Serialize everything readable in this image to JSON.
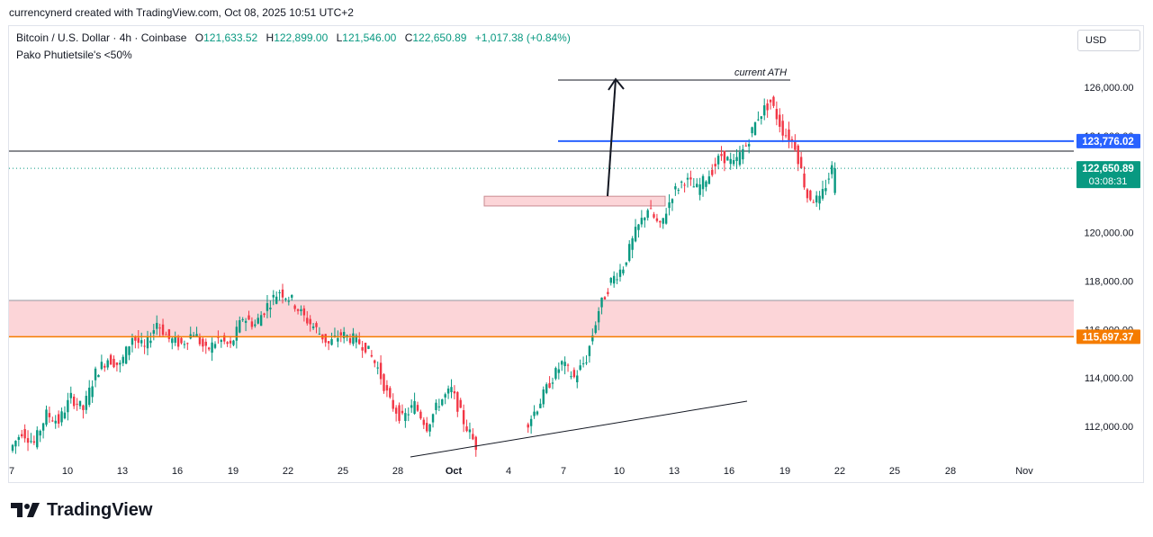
{
  "header": {
    "attribution": "currencynerd created with TradingView.com, Oct 08, 2025 10:51 UTC+2"
  },
  "legend": {
    "symbol": "Bitcoin / U.S. Dollar · 4h · Coinbase",
    "open_label": "O",
    "open": "121,633.52",
    "high_label": "H",
    "high": "122,899.00",
    "low_label": "L",
    "low": "121,546.00",
    "close_label": "C",
    "close": "122,650.89",
    "change": "+1,017.38 (+0.84%)",
    "indicator": "Pako Phutietsile's <50%"
  },
  "currency_button": "USD",
  "brand": {
    "name": "TradingView",
    "logo_icon": "tradingview-logo-icon"
  },
  "colors": {
    "up": "#089981",
    "down": "#f23645",
    "blue_level": "#2962ff",
    "orange_level": "#f57c00",
    "zone_fill": "#fcd5d8",
    "text": "#131722"
  },
  "chart_data": {
    "type": "candlestick",
    "symbol": "BTCUSD",
    "timeframe": "4h",
    "x_tick_labels": [
      "7",
      "10",
      "13",
      "16",
      "19",
      "22",
      "25",
      "28",
      "Oct",
      "4",
      "7",
      "10",
      "13",
      "16",
      "19",
      "22",
      "25",
      "28",
      "Nov"
    ],
    "y_tick_labels": [
      "126,000.00",
      "124,000.00",
      "120,000.00",
      "118,000.00",
      "116,000.00",
      "114,000.00",
      "112,000.00"
    ],
    "ylim": [
      110700,
      127300
    ],
    "x_range_days": [
      "2025-09-07",
      "2025-11-01"
    ],
    "price_levels": [
      {
        "label": "123,776.02",
        "value": 123776.02,
        "color": "#2962ff"
      },
      {
        "label": "122,650.89",
        "value": 122650.89,
        "color": "#089981",
        "countdown": "03:08:31"
      },
      {
        "label": "115,697.37",
        "value": 115697.37,
        "color": "#f57c00"
      }
    ],
    "horizontal_lines": [
      {
        "value": 123500,
        "color": "#131722"
      }
    ],
    "zones": [
      {
        "from": 115697.37,
        "to": 117200,
        "color": "#fcd5d8"
      },
      {
        "from": 121100,
        "to": 121500,
        "color": "#fcd5d8"
      }
    ],
    "annotations": [
      {
        "text": "current ATH",
        "value": 126250
      }
    ],
    "grid": false,
    "candles_close_path": [
      [
        0,
        111000
      ],
      [
        4,
        111800
      ],
      [
        8,
        111300
      ],
      [
        12,
        112500
      ],
      [
        16,
        112200
      ],
      [
        20,
        113200
      ],
      [
        24,
        112700
      ],
      [
        28,
        114200
      ],
      [
        32,
        114800
      ],
      [
        36,
        114500
      ],
      [
        40,
        115700
      ],
      [
        44,
        115200
      ],
      [
        48,
        116300
      ],
      [
        52,
        115600
      ],
      [
        56,
        115400
      ],
      [
        60,
        115900
      ],
      [
        64,
        115100
      ],
      [
        68,
        115600
      ],
      [
        72,
        115300
      ],
      [
        76,
        116500
      ],
      [
        80,
        116200
      ],
      [
        84,
        117000
      ],
      [
        88,
        117600
      ],
      [
        92,
        117200
      ],
      [
        96,
        116500
      ],
      [
        100,
        116000
      ],
      [
        104,
        115400
      ],
      [
        108,
        115800
      ],
      [
        112,
        115600
      ],
      [
        116,
        115300
      ],
      [
        120,
        114400
      ],
      [
        124,
        113000
      ],
      [
        128,
        112300
      ],
      [
        132,
        112900
      ],
      [
        136,
        112000
      ],
      [
        140,
        113000
      ],
      [
        144,
        113500
      ],
      [
        148,
        112200
      ],
      [
        152,
        111200
      ],
      [
        168,
        112000
      ],
      [
        172,
        112800
      ],
      [
        176,
        113800
      ],
      [
        180,
        114600
      ],
      [
        184,
        114000
      ],
      [
        188,
        114800
      ],
      [
        192,
        116800
      ],
      [
        196,
        118000
      ],
      [
        200,
        118600
      ],
      [
        204,
        120000
      ],
      [
        208,
        121000
      ],
      [
        212,
        120200
      ],
      [
        216,
        121600
      ],
      [
        220,
        122200
      ],
      [
        224,
        121800
      ],
      [
        228,
        122400
      ],
      [
        232,
        123200
      ],
      [
        236,
        122800
      ],
      [
        240,
        123600
      ],
      [
        244,
        124800
      ],
      [
        248,
        125400
      ],
      [
        252,
        124200
      ],
      [
        256,
        123600
      ],
      [
        260,
        121500
      ],
      [
        264,
        121300
      ],
      [
        268,
        122650
      ]
    ]
  }
}
